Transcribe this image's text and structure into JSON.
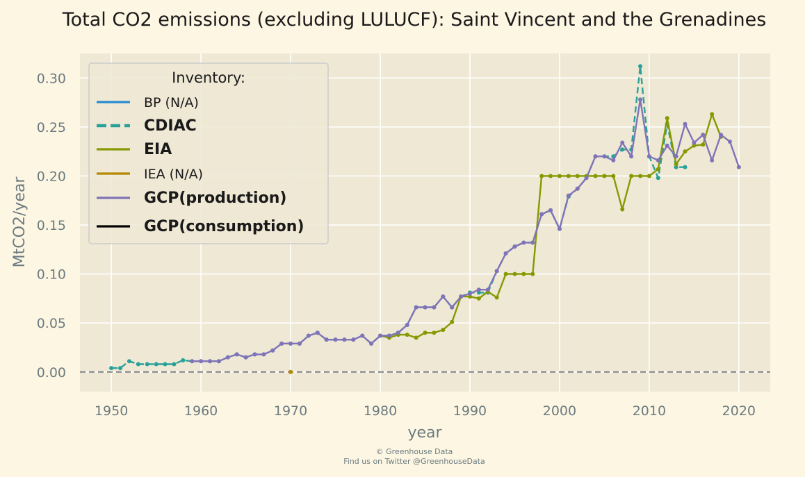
{
  "chart_data": {
    "type": "line",
    "title": "Total CO2 emissions (excluding LULUCF): Saint Vincent and the Grenadines",
    "xlabel": "year",
    "ylabel": "MtCO2/year",
    "xlim": [
      1946.5,
      2023.5
    ],
    "ylim": [
      -0.02,
      0.325
    ],
    "xticks": [
      1950,
      1960,
      1970,
      1980,
      1990,
      2000,
      2010,
      2020
    ],
    "yticks": [
      0.0,
      0.05,
      0.1,
      0.15,
      0.2,
      0.25,
      0.3
    ],
    "ytick_labels": [
      "0.00",
      "0.05",
      "0.10",
      "0.15",
      "0.20",
      "0.25",
      "0.30"
    ],
    "grid": true,
    "zero_line": true,
    "legend": {
      "title": "Inventory:",
      "placement": "top-left",
      "entries": [
        {
          "label": "BP (N/A)",
          "color": "#268bd2",
          "dash": false,
          "bold": false
        },
        {
          "label": "CDIAC",
          "color": "#2aa198",
          "dash": true,
          "bold": true
        },
        {
          "label": "EIA",
          "color": "#859900",
          "dash": false,
          "bold": true
        },
        {
          "label": "IEA (N/A)",
          "color": "#b58900",
          "dash": false,
          "bold": false
        },
        {
          "label": "GCP(production)",
          "color": "#8073b8",
          "dash": false,
          "bold": true
        },
        {
          "label": "GCP(consumption)",
          "color": "#000000",
          "dash": false,
          "bold": true
        }
      ]
    },
    "series": [
      {
        "name": "CDIAC",
        "color": "#2aa198",
        "dash": true,
        "x": [
          1950,
          1951,
          1952,
          1953,
          1954,
          1955,
          1956,
          1957,
          1958,
          1959,
          1960,
          1961,
          1962,
          1963,
          1964,
          1965,
          1966,
          1967,
          1968,
          1969,
          1970,
          1971,
          1972,
          1973,
          1974,
          1975,
          1976,
          1977,
          1978,
          1979,
          1980,
          1981,
          1982,
          1983,
          1984,
          1985,
          1986,
          1987,
          1988,
          1989,
          1990,
          1991,
          1992,
          1993,
          1994,
          1995,
          1996,
          1997,
          1998,
          1999,
          2000,
          2001,
          2002,
          2003,
          2004,
          2005,
          2006,
          2007,
          2008,
          2009,
          2010,
          2011,
          2012,
          2013,
          2014
        ],
        "y": [
          0.004,
          0.004,
          0.011,
          0.008,
          0.008,
          0.008,
          0.008,
          0.008,
          0.012,
          0.011,
          0.011,
          0.011,
          0.011,
          0.015,
          0.018,
          0.015,
          0.018,
          0.018,
          0.022,
          0.029,
          0.029,
          0.029,
          0.037,
          0.04,
          0.033,
          0.033,
          0.033,
          0.033,
          0.037,
          0.029,
          0.037,
          0.037,
          0.04,
          0.048,
          0.066,
          0.066,
          0.066,
          0.077,
          0.066,
          0.077,
          0.081,
          0.081,
          0.081,
          0.103,
          0.121,
          0.128,
          0.132,
          0.132,
          0.161,
          0.165,
          0.146,
          0.179,
          0.187,
          0.198,
          0.22,
          0.22,
          0.22,
          0.227,
          0.227,
          0.312,
          0.22,
          0.198,
          0.253,
          0.209,
          0.209
        ]
      },
      {
        "name": "EIA",
        "color": "#859900",
        "dash": false,
        "x": [
          1980,
          1981,
          1982,
          1983,
          1984,
          1985,
          1986,
          1987,
          1988,
          1989,
          1990,
          1991,
          1992,
          1993,
          1994,
          1995,
          1996,
          1997,
          1998,
          1999,
          2000,
          2001,
          2002,
          2003,
          2004,
          2005,
          2006,
          2007,
          2008,
          2009,
          2010,
          2011,
          2012,
          2013,
          2014,
          2015,
          2016,
          2017,
          2018
        ],
        "y": [
          0.037,
          0.035,
          0.038,
          0.038,
          0.035,
          0.04,
          0.04,
          0.043,
          0.051,
          0.077,
          0.077,
          0.075,
          0.082,
          0.076,
          0.1,
          0.1,
          0.1,
          0.1,
          0.2,
          0.2,
          0.2,
          0.2,
          0.2,
          0.2,
          0.2,
          0.2,
          0.2,
          0.166,
          0.2,
          0.2,
          0.2,
          0.207,
          0.259,
          0.212,
          0.225,
          0.231,
          0.232,
          0.263,
          0.24
        ]
      },
      {
        "name": "IEA (N/A)",
        "color": "#b58900",
        "dash": false,
        "x": [
          1970
        ],
        "y": [
          0.0
        ]
      },
      {
        "name": "GCP(production)",
        "color": "#8073b8",
        "dash": false,
        "x": [
          1959,
          1960,
          1961,
          1962,
          1963,
          1964,
          1965,
          1966,
          1967,
          1968,
          1969,
          1970,
          1971,
          1972,
          1973,
          1974,
          1975,
          1976,
          1977,
          1978,
          1979,
          1980,
          1981,
          1982,
          1983,
          1984,
          1985,
          1986,
          1987,
          1988,
          1989,
          1990,
          1991,
          1992,
          1993,
          1994,
          1995,
          1996,
          1997,
          1998,
          1999,
          2000,
          2001,
          2002,
          2003,
          2004,
          2005,
          2006,
          2007,
          2008,
          2009,
          2010,
          2011,
          2012,
          2013,
          2014,
          2015,
          2016,
          2017,
          2018,
          2019,
          2020
        ],
        "y": [
          0.011,
          0.011,
          0.011,
          0.011,
          0.015,
          0.018,
          0.015,
          0.018,
          0.018,
          0.022,
          0.029,
          0.029,
          0.029,
          0.037,
          0.04,
          0.033,
          0.033,
          0.033,
          0.033,
          0.037,
          0.029,
          0.037,
          0.037,
          0.04,
          0.048,
          0.066,
          0.066,
          0.066,
          0.077,
          0.066,
          0.077,
          0.08,
          0.084,
          0.084,
          0.103,
          0.121,
          0.128,
          0.132,
          0.132,
          0.161,
          0.165,
          0.146,
          0.18,
          0.187,
          0.198,
          0.22,
          0.22,
          0.216,
          0.234,
          0.22,
          0.278,
          0.22,
          0.216,
          0.231,
          0.22,
          0.253,
          0.234,
          0.242,
          0.216,
          0.242,
          0.235,
          0.209
        ]
      }
    ]
  },
  "footer": {
    "line1": "© Greenhouse Data",
    "line2": "Find us on Twitter @GreenhouseData"
  }
}
